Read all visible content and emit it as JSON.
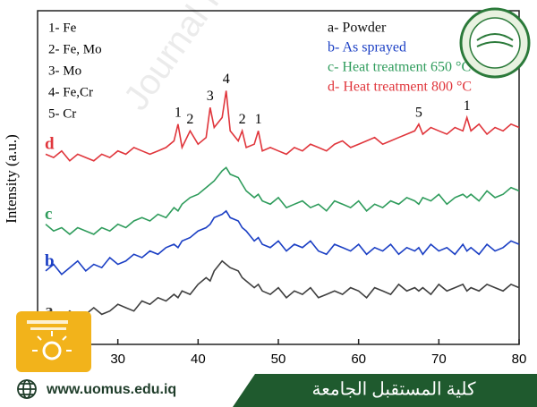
{
  "chart_data": {
    "type": "line",
    "y_label": "Intensity (a.u.)",
    "watermark": "Journal Pre-proof",
    "phase_legend": [
      "1- Fe",
      "2- Fe, Mo",
      "3- Mo",
      "4- Fe,Cr",
      "5- Cr"
    ],
    "x": [
      21,
      22,
      23,
      24,
      25,
      26,
      27,
      28,
      29,
      30,
      31,
      32,
      33,
      34,
      35,
      36,
      37,
      37.5,
      38,
      39,
      40,
      41,
      41.5,
      42,
      43,
      43.5,
      44,
      45,
      45.5,
      46,
      47,
      47.5,
      48,
      49,
      50,
      51,
      52,
      53,
      54,
      55,
      56,
      57,
      58,
      59,
      60,
      61,
      62,
      63,
      64,
      65,
      66,
      67,
      67.5,
      68,
      69,
      70,
      71,
      72,
      73,
      73.5,
      74,
      75,
      76,
      77,
      78,
      79,
      80
    ],
    "xlim": [
      20,
      80
    ],
    "xticks": [
      30,
      40,
      50,
      60,
      70,
      80
    ],
    "ylim": [
      0,
      100
    ],
    "series": [
      {
        "name": "a- Powder",
        "tag": "a",
        "color": "#3f3f3f",
        "values": [
          7,
          9,
          8,
          10,
          8,
          9,
          11,
          9,
          10,
          12,
          11,
          10,
          13,
          12,
          14,
          13,
          15,
          14,
          16,
          15,
          18,
          20,
          19,
          22,
          25,
          24,
          23,
          22,
          20,
          19,
          17,
          18,
          16,
          15,
          17,
          14,
          16,
          15,
          17,
          14,
          15,
          16,
          15,
          17,
          16,
          14,
          17,
          16,
          15,
          18,
          16,
          17,
          16,
          17,
          15,
          18,
          16,
          17,
          18,
          16,
          17,
          16,
          18,
          17,
          16,
          18,
          17
        ]
      },
      {
        "name": "b- As sprayed",
        "tag": "b",
        "color": "#1b3fc4",
        "values": [
          22,
          24,
          21,
          23,
          25,
          22,
          24,
          23,
          26,
          24,
          25,
          27,
          26,
          28,
          27,
          29,
          30,
          29,
          31,
          32,
          34,
          35,
          36,
          38,
          39,
          40,
          38,
          37,
          35,
          34,
          31,
          32,
          30,
          29,
          31,
          28,
          30,
          29,
          31,
          28,
          27,
          30,
          29,
          28,
          30,
          27,
          29,
          28,
          30,
          27,
          29,
          28,
          29,
          27,
          30,
          28,
          29,
          27,
          30,
          28,
          29,
          27,
          30,
          28,
          29,
          31,
          30
        ]
      },
      {
        "name": "c- Heat treatment 650 °C",
        "tag": "c",
        "color": "#2f9c5c",
        "values": [
          36,
          34,
          35,
          33,
          35,
          34,
          33,
          35,
          34,
          36,
          35,
          37,
          38,
          37,
          39,
          38,
          41,
          40,
          42,
          44,
          45,
          47,
          48,
          49,
          52,
          53,
          51,
          50,
          48,
          46,
          44,
          45,
          43,
          42,
          44,
          41,
          42,
          43,
          41,
          42,
          40,
          43,
          42,
          41,
          43,
          40,
          42,
          41,
          43,
          42,
          44,
          43,
          42,
          44,
          43,
          45,
          42,
          44,
          45,
          44,
          45,
          43,
          46,
          44,
          45,
          47,
          46
        ]
      },
      {
        "name": "d- Heat treatment 800 °C",
        "tag": "d",
        "color": "#e0363c",
        "values": [
          57,
          56,
          58,
          55,
          57,
          56,
          55,
          57,
          56,
          58,
          57,
          59,
          58,
          57,
          58,
          59,
          61,
          66,
          59,
          64,
          60,
          62,
          71,
          65,
          68,
          76,
          64,
          61,
          64,
          59,
          60,
          64,
          58,
          59,
          58,
          57,
          59,
          58,
          60,
          59,
          58,
          60,
          61,
          59,
          60,
          61,
          62,
          60,
          61,
          62,
          63,
          64,
          66,
          63,
          65,
          64,
          63,
          65,
          64,
          68,
          64,
          66,
          63,
          65,
          64,
          66,
          65
        ]
      }
    ],
    "peak_labels": [
      {
        "text": "1",
        "x": 37.5
      },
      {
        "text": "2",
        "x": 39
      },
      {
        "text": "3",
        "x": 41.5
      },
      {
        "text": "4",
        "x": 43.5
      },
      {
        "text": "2",
        "x": 45.5
      },
      {
        "text": "1",
        "x": 47.5
      },
      {
        "text": "5",
        "x": 67.5
      },
      {
        "text": "1",
        "x": 73.5
      }
    ]
  },
  "footer": {
    "url": "www.uomus.edu.iq",
    "college": "كلية المستقبل الجامعة"
  }
}
